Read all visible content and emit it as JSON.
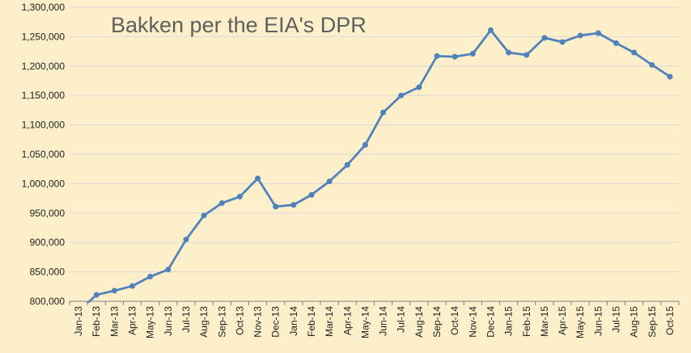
{
  "chart_data": {
    "type": "line",
    "title": "Bakken per the EIA's DPR",
    "xlabel": "",
    "ylabel": "",
    "grid": true,
    "ylim": [
      800000,
      1300000
    ],
    "y_ticks": [
      800000,
      850000,
      900000,
      950000,
      1000000,
      1050000,
      1100000,
      1150000,
      1200000,
      1250000,
      1300000
    ],
    "y_tick_labels": [
      "800,000",
      "850,000",
      "900,000",
      "950,000",
      "1,000,000",
      "1,050,000",
      "1,100,000",
      "1,150,000",
      "1,200,000",
      "1,250,000",
      "1,300,000"
    ],
    "categories": [
      "Jan-13",
      "Feb-13",
      "Mar-13",
      "Apr-13",
      "May-13",
      "Jun-13",
      "Jul-13",
      "Aug-13",
      "Sep-13",
      "Oct-13",
      "Nov-13",
      "Dec-13",
      "Jan-14",
      "Feb-14",
      "Mar-14",
      "Apr-14",
      "May-14",
      "Jun-14",
      "Jul-14",
      "Aug-14",
      "Sep-14",
      "Oct-14",
      "Nov-14",
      "Dec-14",
      "Jan-15",
      "Feb-15",
      "Mar-15",
      "Apr-15",
      "May-15",
      "Jun-15",
      "Jul-15",
      "Aug-15",
      "Sep-15",
      "Oct-15"
    ],
    "series": [
      {
        "name": "",
        "color": "#4f81bd",
        "values": [
          783000,
          811000,
          818000,
          826000,
          842000,
          854000,
          905000,
          946000,
          967000,
          978000,
          1009000,
          961000,
          964000,
          981000,
          1004000,
          1032000,
          1066000,
          1121000,
          1150000,
          1164000,
          1217000,
          1216000,
          1221000,
          1261000,
          1223000,
          1219000,
          1248000,
          1241000,
          1252000,
          1256000,
          1239000,
          1223000,
          1202000,
          1182000
        ]
      }
    ]
  }
}
